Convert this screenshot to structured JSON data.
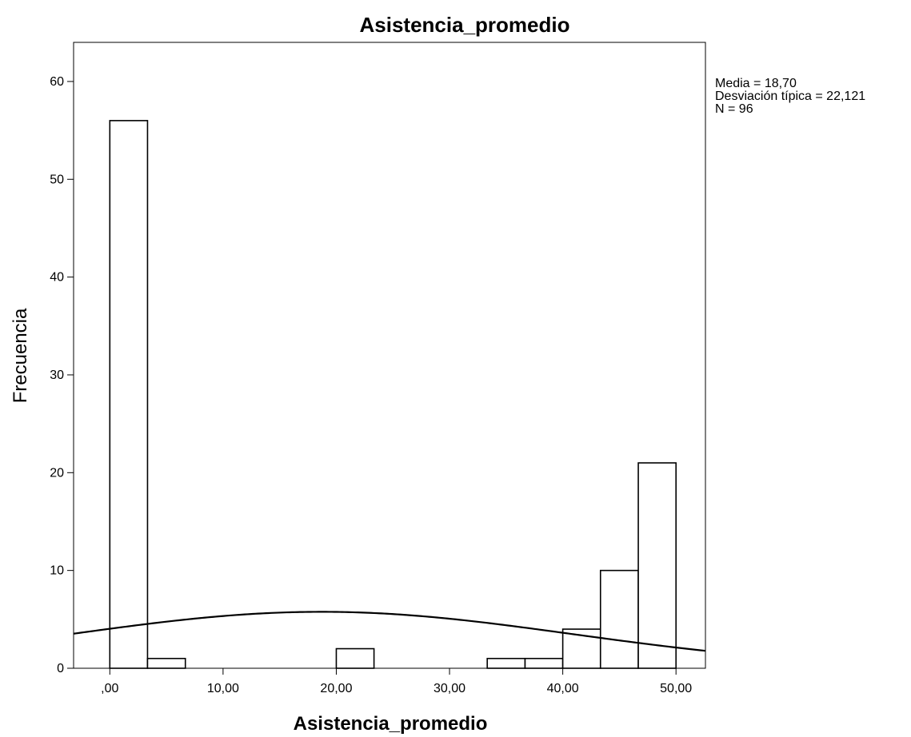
{
  "chart_data": {
    "type": "bar",
    "title": "Asistencia_promedio",
    "xlabel": "Asistencia_promedio",
    "ylabel": "Frecuencia",
    "xlim": [
      -3.2,
      52.6
    ],
    "ylim": [
      0,
      64
    ],
    "x_ticks": [
      {
        "value": 0,
        "label": ",00"
      },
      {
        "value": 10,
        "label": "10,00"
      },
      {
        "value": 20,
        "label": "20,00"
      },
      {
        "value": 30,
        "label": "30,00"
      },
      {
        "value": 40,
        "label": "40,00"
      },
      {
        "value": 50,
        "label": "50,00"
      }
    ],
    "y_ticks": [
      {
        "value": 0,
        "label": "0"
      },
      {
        "value": 10,
        "label": "10"
      },
      {
        "value": 20,
        "label": "20"
      },
      {
        "value": 30,
        "label": "30"
      },
      {
        "value": 40,
        "label": "40"
      },
      {
        "value": 50,
        "label": "50"
      },
      {
        "value": 60,
        "label": "60"
      }
    ],
    "bins": [
      {
        "from": 0.0,
        "to": 3.33,
        "count": 56
      },
      {
        "from": 3.33,
        "to": 6.67,
        "count": 1
      },
      {
        "from": 6.67,
        "to": 10.0,
        "count": 0
      },
      {
        "from": 10.0,
        "to": 13.33,
        "count": 0
      },
      {
        "from": 13.33,
        "to": 16.67,
        "count": 0
      },
      {
        "from": 16.67,
        "to": 20.0,
        "count": 0
      },
      {
        "from": 20.0,
        "to": 23.33,
        "count": 2
      },
      {
        "from": 23.33,
        "to": 26.67,
        "count": 0
      },
      {
        "from": 26.67,
        "to": 30.0,
        "count": 0
      },
      {
        "from": 30.0,
        "to": 33.33,
        "count": 0
      },
      {
        "from": 33.33,
        "to": 36.67,
        "count": 1
      },
      {
        "from": 36.67,
        "to": 40.0,
        "count": 1
      },
      {
        "from": 40.0,
        "to": 43.33,
        "count": 4
      },
      {
        "from": 43.33,
        "to": 46.67,
        "count": 10
      },
      {
        "from": 46.67,
        "to": 50.0,
        "count": 21
      }
    ],
    "normal_curve": {
      "mean": 18.7,
      "std_dev": 22.121,
      "n": 96,
      "bin_width": 3.333
    },
    "stats": {
      "mean_label": "Media = 18,70",
      "std_label": "Desviación típica = 22,121",
      "n_label": "N = 96"
    },
    "colors": {
      "bar_fill": "#ffffff",
      "bar_stroke": "#000000",
      "curve": "#000000",
      "background": "#ffffff"
    }
  }
}
